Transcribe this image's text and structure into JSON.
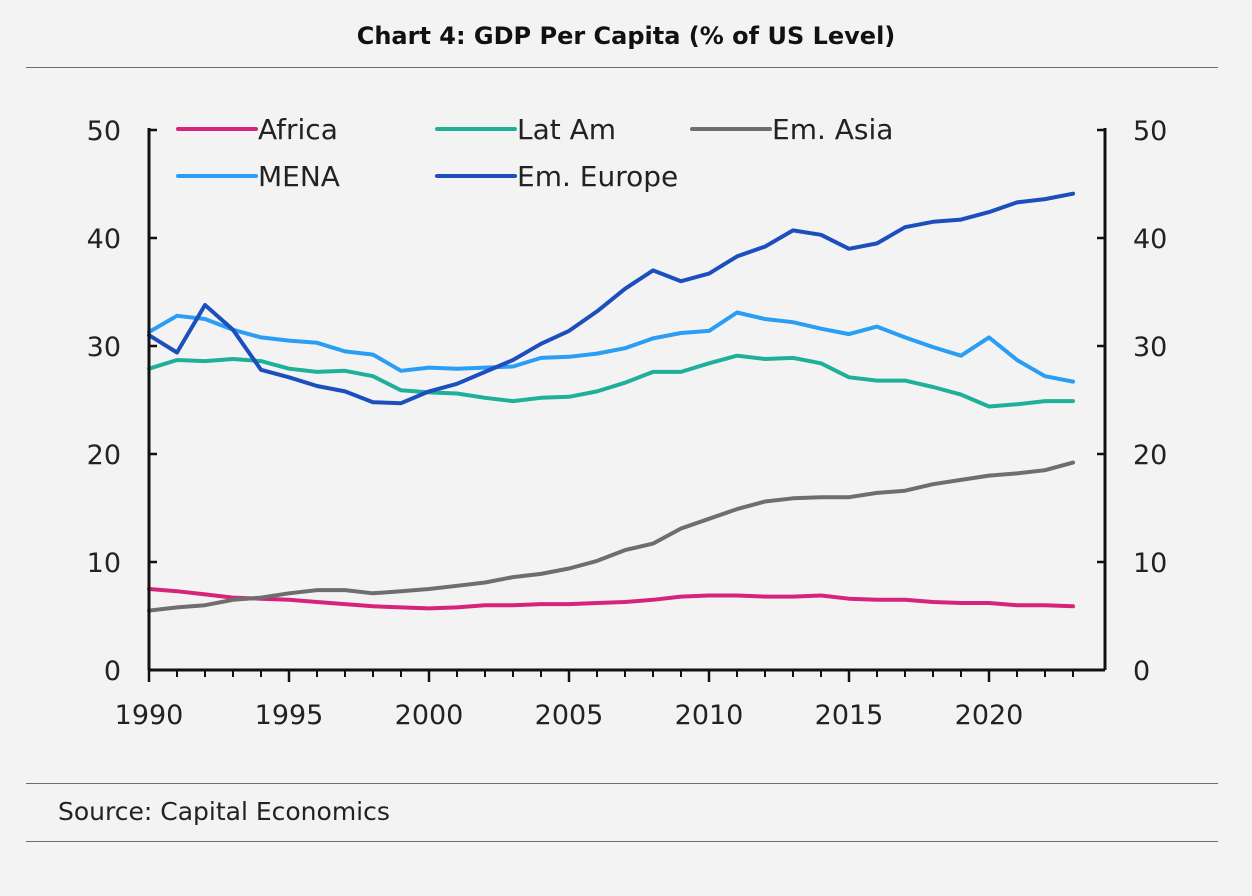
{
  "title": "Chart 4: GDP Per Capita (% of US Level)",
  "source": "Source: Capital Economics",
  "chart_data": {
    "type": "line",
    "title": "Chart 4: GDP Per Capita (% of US Level)",
    "xlabel": "",
    "ylabel": "",
    "xlim": [
      1990,
      2024
    ],
    "ylim": [
      0,
      50
    ],
    "x_ticks": [
      "1990",
      "1995",
      "2000",
      "2005",
      "2010",
      "2015",
      "2020"
    ],
    "y_ticks": [
      "0",
      "10",
      "20",
      "30",
      "40",
      "50"
    ],
    "dual_y_axis": true,
    "grid": false,
    "legend_position": "top",
    "x": [
      1990,
      1991,
      1992,
      1993,
      1994,
      1995,
      1996,
      1997,
      1998,
      1999,
      2000,
      2001,
      2002,
      2003,
      2004,
      2005,
      2006,
      2007,
      2008,
      2009,
      2010,
      2011,
      2012,
      2013,
      2014,
      2015,
      2016,
      2017,
      2018,
      2019,
      2020,
      2021,
      2022,
      2023
    ],
    "series": [
      {
        "name": "Africa",
        "color": "#d6247d",
        "values": [
          7.5,
          7.3,
          7.0,
          6.7,
          6.6,
          6.5,
          6.3,
          6.1,
          5.9,
          5.8,
          5.7,
          5.8,
          6.0,
          6.0,
          6.1,
          6.1,
          6.2,
          6.3,
          6.5,
          6.8,
          6.9,
          6.9,
          6.8,
          6.8,
          6.9,
          6.6,
          6.5,
          6.5,
          6.3,
          6.2,
          6.2,
          6.0,
          6.0,
          5.9
        ]
      },
      {
        "name": "Lat Am",
        "color": "#1fb099",
        "values": [
          27.9,
          28.7,
          28.6,
          28.8,
          28.6,
          27.9,
          27.6,
          27.7,
          27.2,
          25.9,
          25.7,
          25.6,
          25.2,
          24.9,
          25.2,
          25.3,
          25.8,
          26.6,
          27.6,
          27.6,
          28.4,
          29.1,
          28.8,
          28.9,
          28.4,
          27.1,
          26.8,
          26.8,
          26.2,
          25.5,
          24.4,
          24.6,
          24.9,
          24.9
        ]
      },
      {
        "name": "Em. Asia",
        "color": "#6e6e6e",
        "values": [
          5.5,
          5.8,
          6.0,
          6.5,
          6.7,
          7.1,
          7.4,
          7.4,
          7.1,
          7.3,
          7.5,
          7.8,
          8.1,
          8.6,
          8.9,
          9.4,
          10.1,
          11.1,
          11.7,
          13.1,
          14.0,
          14.9,
          15.6,
          15.9,
          16.0,
          16.0,
          16.4,
          16.6,
          17.2,
          17.6,
          18.0,
          18.2,
          18.5,
          19.2
        ]
      },
      {
        "name": "MENA",
        "color": "#2a9df4",
        "values": [
          31.3,
          32.8,
          32.5,
          31.5,
          30.8,
          30.5,
          30.3,
          29.5,
          29.2,
          27.7,
          28.0,
          27.9,
          28.0,
          28.1,
          28.9,
          29.0,
          29.3,
          29.8,
          30.7,
          31.2,
          31.4,
          33.1,
          32.5,
          32.2,
          31.6,
          31.1,
          31.8,
          30.8,
          29.9,
          29.1,
          30.8,
          28.7,
          27.2,
          26.7
        ]
      },
      {
        "name": "Em. Europe",
        "color": "#1c4fbd",
        "values": [
          31.0,
          29.4,
          33.8,
          31.5,
          27.8,
          27.1,
          26.3,
          25.8,
          24.8,
          24.7,
          25.8,
          26.5,
          27.6,
          28.7,
          30.2,
          31.4,
          33.2,
          35.3,
          37.0,
          36.0,
          36.7,
          38.3,
          39.2,
          40.7,
          40.3,
          39.0,
          39.5,
          41.0,
          41.5,
          41.7,
          42.4,
          43.3,
          43.6,
          44.1
        ]
      }
    ]
  }
}
